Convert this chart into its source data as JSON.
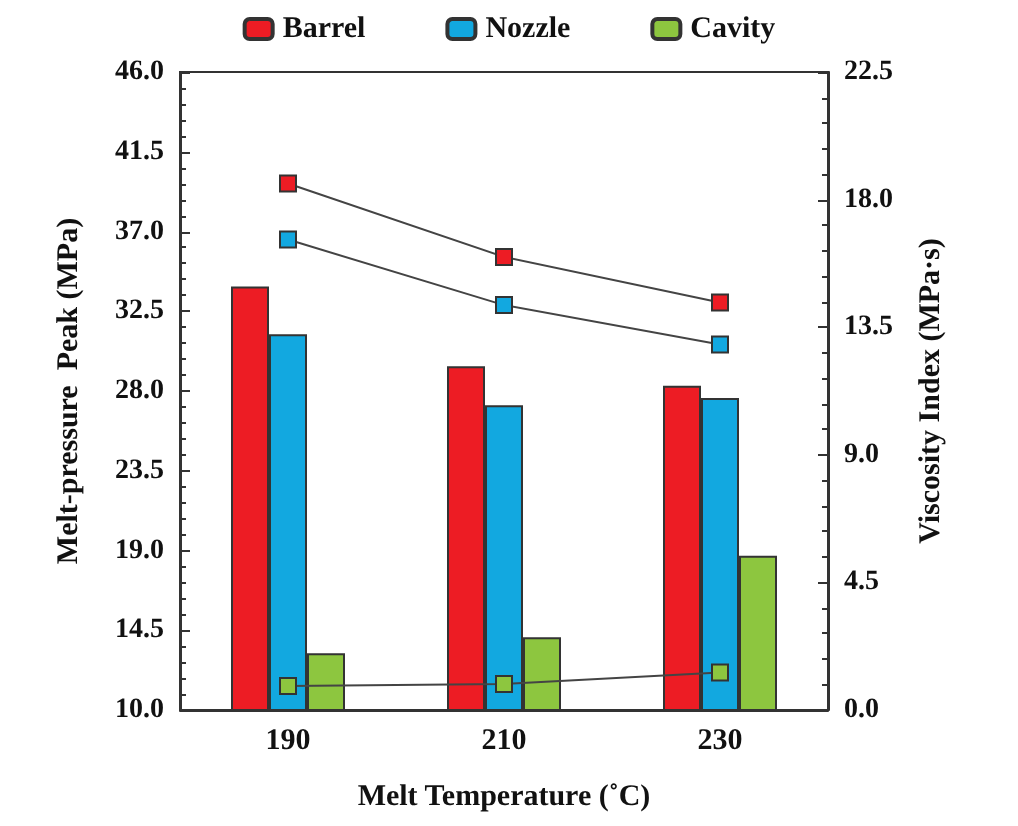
{
  "chart_data": {
    "type": "bar",
    "xlabel": "Melt Temperature (˚C)",
    "ylabel": "Melt-pressure  Peak (MPa)",
    "y2label": "Viscosity Index (MPa·s)",
    "categories": [
      "190",
      "210",
      "230"
    ],
    "series": [
      {
        "name": "Barrel",
        "color": "#ed1c24",
        "values": [
          33.9,
          29.4,
          28.3
        ]
      },
      {
        "name": "Nozzle",
        "color": "#12a8e0",
        "values": [
          31.2,
          27.2,
          27.6
        ]
      },
      {
        "name": "Cavity",
        "color": "#8dc63f",
        "values": [
          13.2,
          14.1,
          18.7
        ]
      },
      {
        "type": "line",
        "axis": "y2",
        "color": "#ed1c24",
        "values": [
          18.57,
          15.98,
          14.37
        ]
      },
      {
        "type": "line",
        "axis": "y2",
        "color": "#12a8e0",
        "values": [
          16.59,
          14.28,
          12.89
        ]
      },
      {
        "type": "line",
        "axis": "y2",
        "color": "#8dc63f",
        "values": [
          0.85,
          0.92,
          1.32
        ]
      }
    ],
    "ylim": [
      10,
      46
    ],
    "yticks": [
      {
        "value": 10,
        "label": "10.0"
      },
      {
        "value": 14.5,
        "label": "14.5"
      },
      {
        "value": 19,
        "label": "19.0"
      },
      {
        "value": 23.5,
        "label": "23.5"
      },
      {
        "value": 28,
        "label": "28.0"
      },
      {
        "value": 32.5,
        "label": "32.5"
      },
      {
        "value": 37,
        "label": "37.0"
      },
      {
        "value": 41.5,
        "label": "41.5"
      },
      {
        "value": 46,
        "label": "46.0"
      }
    ],
    "y2lim": [
      0,
      22.5
    ],
    "y2ticks": [
      {
        "value": 0,
        "label": "0.0"
      },
      {
        "value": 4.5,
        "label": "4.5"
      },
      {
        "value": 9,
        "label": "9.0"
      },
      {
        "value": 13.5,
        "label": "13.5"
      },
      {
        "value": 18,
        "label": "18.0"
      },
      {
        "value": 22.5,
        "label": "22.5"
      }
    ],
    "marker": "square",
    "legend": "top",
    "grid": false
  }
}
